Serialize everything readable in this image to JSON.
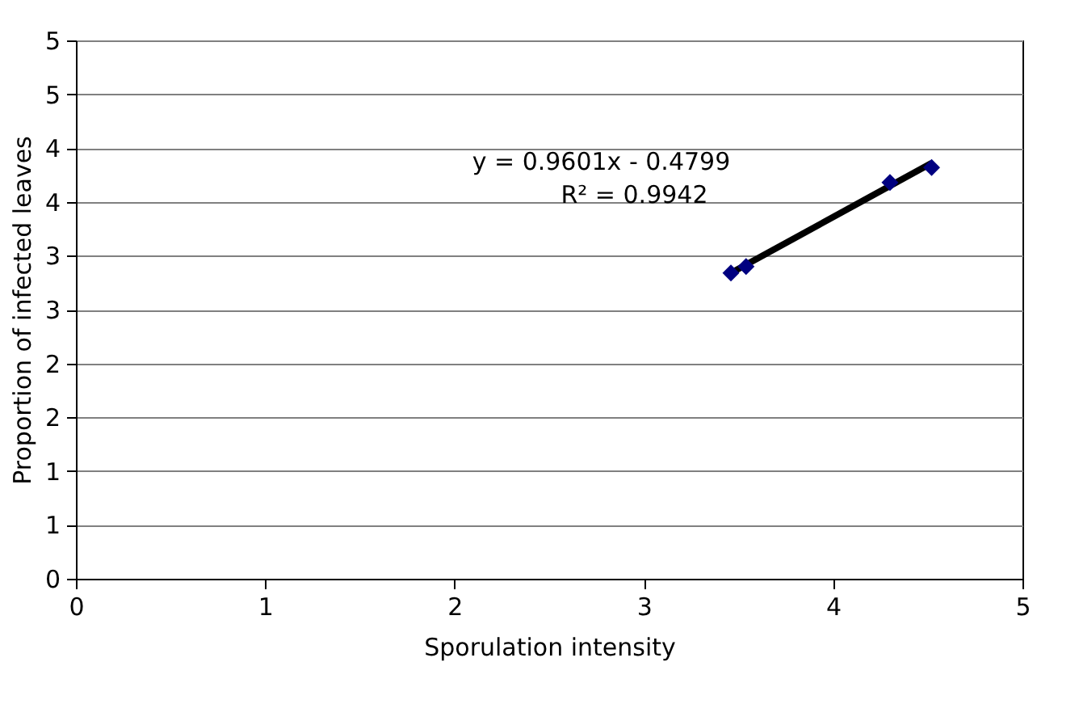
{
  "chart_data": {
    "type": "scatter",
    "xlabel": "Sporulation intensity",
    "ylabel": "Proportion of infected leaves",
    "x": [
      3.46,
      3.54,
      4.3,
      4.52
    ],
    "series": [
      {
        "color": "#000080",
        "marker": "diamond",
        "values": [
          2.84,
          2.9,
          3.68,
          3.82
        ]
      },
      {
        "type": "line",
        "color": "#000000",
        "marker": "none",
        "line_style": "solid",
        "x": [
          3.46,
          4.52
        ],
        "values": [
          2.84,
          3.86
        ]
      }
    ],
    "annotations": [
      "y = 0.9601x - 0.4799",
      "R² = 0.9942"
    ],
    "xlim": [
      0,
      5
    ],
    "xticks": [
      0,
      1,
      2,
      3,
      4,
      5
    ],
    "ylim": [
      0,
      5
    ],
    "yticks": [
      0,
      {
        "value": 0.5,
        "label": "1"
      },
      1,
      {
        "value": 1.5,
        "label": "2"
      },
      2,
      {
        "value": 2.5,
        "label": "3"
      },
      3,
      {
        "value": 3.5,
        "label": "4"
      },
      4,
      {
        "value": 4.5,
        "label": "5"
      },
      5
    ],
    "grid": "y"
  }
}
